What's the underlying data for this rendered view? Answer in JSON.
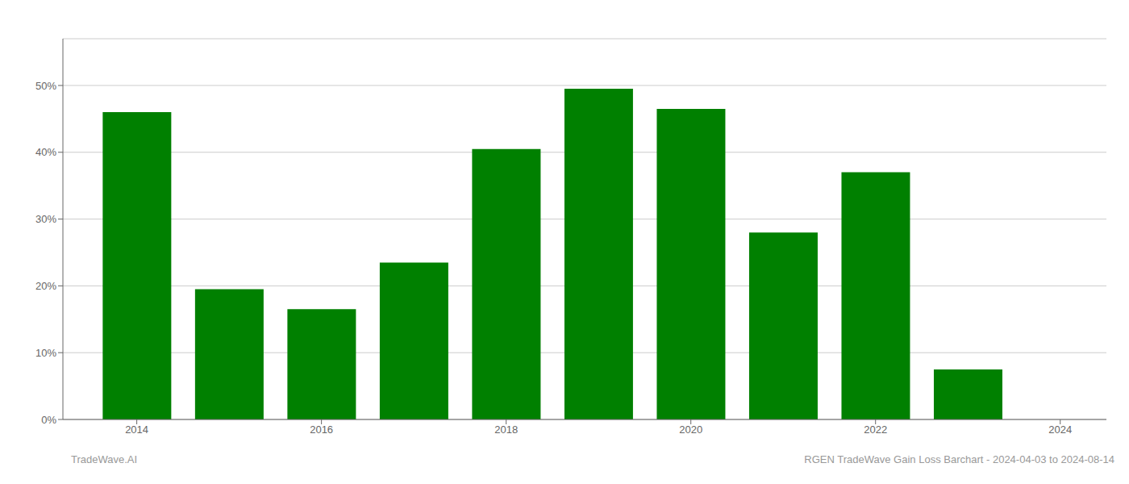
{
  "chart_data": {
    "type": "bar",
    "x": [
      2014,
      2015,
      2016,
      2017,
      2018,
      2019,
      2020,
      2021,
      2022,
      2023
    ],
    "values": [
      0.46,
      0.195,
      0.165,
      0.235,
      0.405,
      0.495,
      0.465,
      0.28,
      0.37,
      0.075
    ],
    "color": "#008000",
    "xlim": [
      2013.2,
      2024.5
    ],
    "xticks": [
      2014,
      2016,
      2018,
      2020,
      2022,
      2024
    ],
    "ylim": [
      0.0,
      0.57
    ],
    "yticks": [
      {
        "value": 0.0,
        "label": "0%"
      },
      {
        "value": 0.1,
        "label": "10%"
      },
      {
        "value": 0.2,
        "label": "20%"
      },
      {
        "value": 0.3,
        "label": "30%"
      },
      {
        "value": 0.4,
        "label": "40%"
      },
      {
        "value": 0.5,
        "label": "50%"
      }
    ],
    "grid": true,
    "annotations": [
      "TradeWave.AI",
      "RGEN TradeWave Gain Loss Barchart - 2024-04-03 to 2024-08-14"
    ]
  }
}
